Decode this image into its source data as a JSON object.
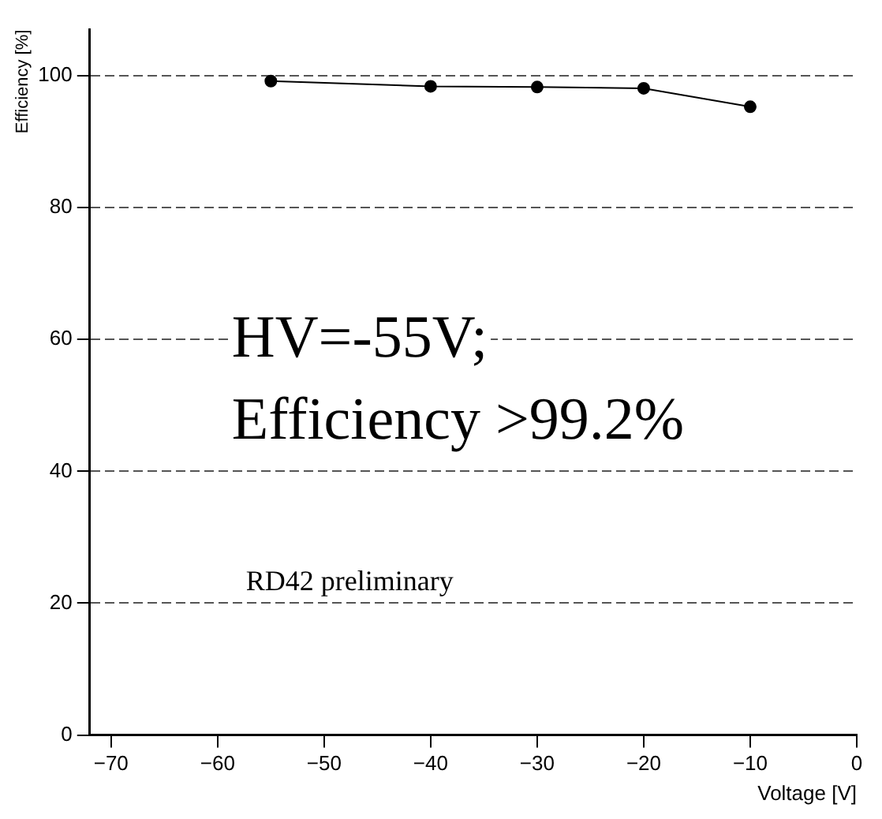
{
  "chart_data": {
    "type": "line",
    "xlabel": "Voltage [V]",
    "ylabel": "Efficiency [%]",
    "x": [
      -55,
      -40,
      -30,
      -20,
      -10
    ],
    "series": [
      {
        "color": "#000000",
        "values": [
          99.2,
          98.4,
          98.3,
          98.1,
          95.3
        ]
      }
    ],
    "xlim": [
      -72,
      0
    ],
    "xticks": [
      -70,
      -60,
      -50,
      -40,
      -30,
      -20,
      -10,
      0
    ],
    "ylim": [
      0,
      107
    ],
    "yticks": [
      0,
      20,
      40,
      60,
      80,
      100
    ],
    "grid": "y",
    "legend": false,
    "marker": "circle",
    "line_style": "solid",
    "annotations": [
      "HV=-55V;\nEfficiency >99.2%",
      "RD42 preliminary"
    ]
  }
}
